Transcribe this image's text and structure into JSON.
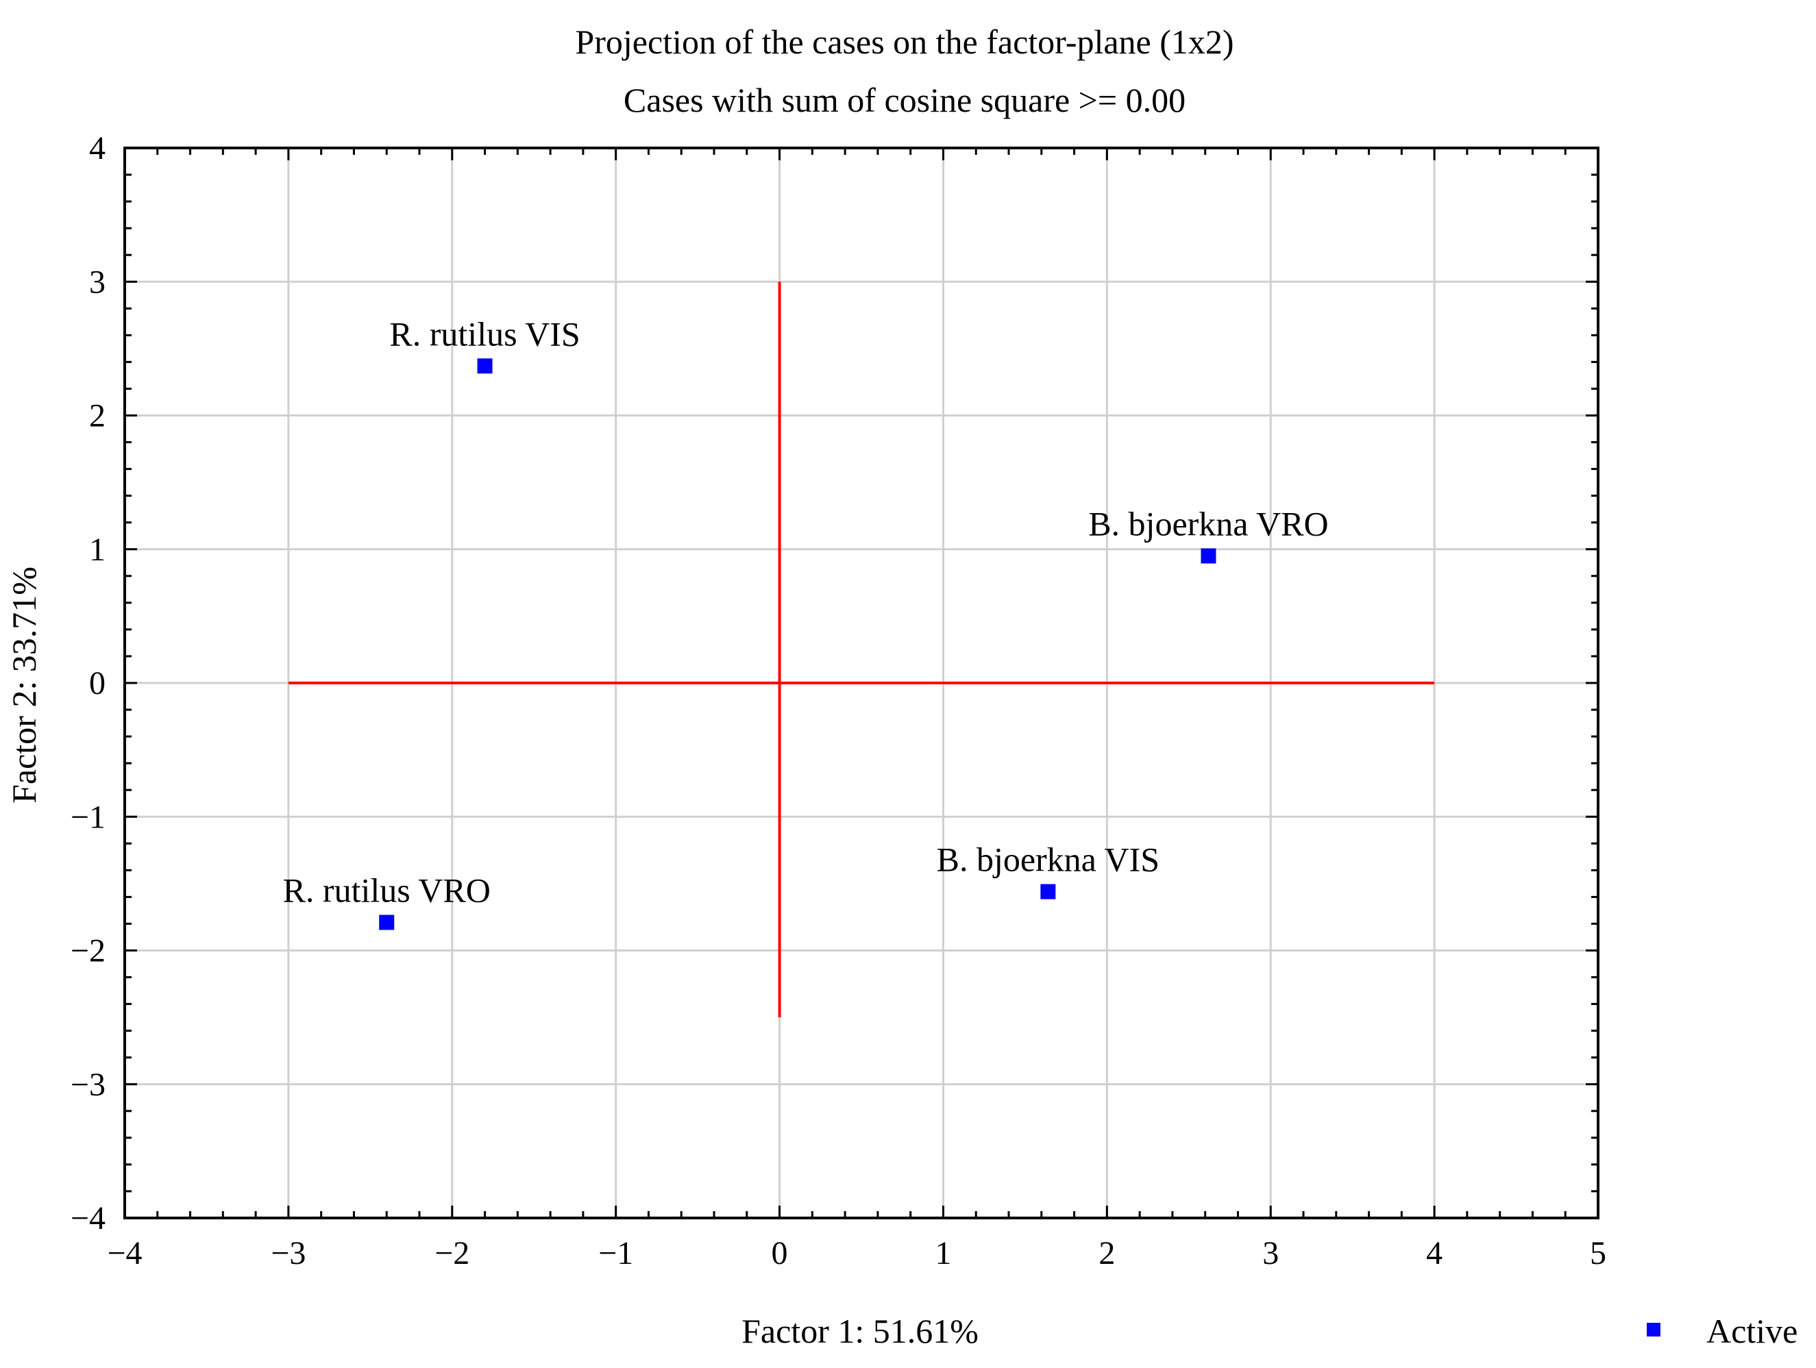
{
  "chart_data": {
    "type": "scatter",
    "title": "Projection of the cases on the factor-plane (1x2)",
    "subtitle": "Cases with sum of cosine square >=  0.00",
    "xlabel": "Factor 1: 51.61%",
    "ylabel": "Factor 2: 33.71%",
    "xlim": [
      -4,
      5
    ],
    "ylim": [
      -4,
      4
    ],
    "x_ticks": [
      -4,
      -3,
      -2,
      -1,
      0,
      1,
      2,
      3,
      4,
      5
    ],
    "y_ticks": [
      -4,
      -3,
      -2,
      -1,
      0,
      1,
      2,
      3,
      4
    ],
    "x_tick_labels": [
      "−4",
      "−3",
      "−2",
      "−1",
      "0",
      "1",
      "2",
      "3",
      "4",
      "5"
    ],
    "y_tick_labels": [
      "−4",
      "−3",
      "−2",
      "−1",
      "0",
      "1",
      "2",
      "3",
      "4"
    ],
    "grid": true,
    "legend": {
      "position": "bottom-right",
      "entries": [
        "Active"
      ]
    },
    "marker_color": "#0000ff",
    "reference_line_color": "#ff0000",
    "reference_lines": {
      "horizontal": {
        "y": 0,
        "x_from": -3,
        "x_to": 4
      },
      "vertical": {
        "x": 0,
        "y_from": -2.5,
        "y_to": 3
      }
    },
    "series": [
      {
        "name": "Active",
        "points": [
          {
            "label": "R. rutilus VIS",
            "x": -1.8,
            "y": 2.37
          },
          {
            "label": "B. bjoerkna VRO",
            "x": 2.62,
            "y": 0.95
          },
          {
            "label": "B. bjoerkna VIS",
            "x": 1.64,
            "y": -1.56
          },
          {
            "label": "R. rutilus VRO",
            "x": -2.4,
            "y": -1.79
          }
        ]
      }
    ]
  }
}
